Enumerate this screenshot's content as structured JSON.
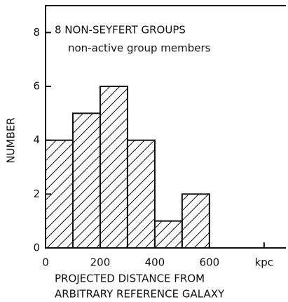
{
  "chart_data": {
    "type": "histogram",
    "title": "8 NON-SEYFERT GROUPS",
    "subtitle": "non-active group members",
    "ylabel": "NUMBER",
    "xlabel": [
      "PROJECTED DISTANCE FROM",
      "ARBITRARY REFERENCE GALAXY"
    ],
    "bins": [
      0,
      100,
      200,
      300,
      400,
      500,
      600
    ],
    "values": [
      4,
      5,
      6,
      4,
      1,
      2
    ],
    "color": "#111111",
    "hatch": true,
    "xlim": [
      0,
      880
    ],
    "xticks": [
      0,
      200,
      400,
      600,
      {
        "value": 800,
        "label": "kpc"
      }
    ],
    "ylim": [
      0,
      9
    ],
    "yticks": [
      0,
      2,
      4,
      6,
      8
    ]
  }
}
